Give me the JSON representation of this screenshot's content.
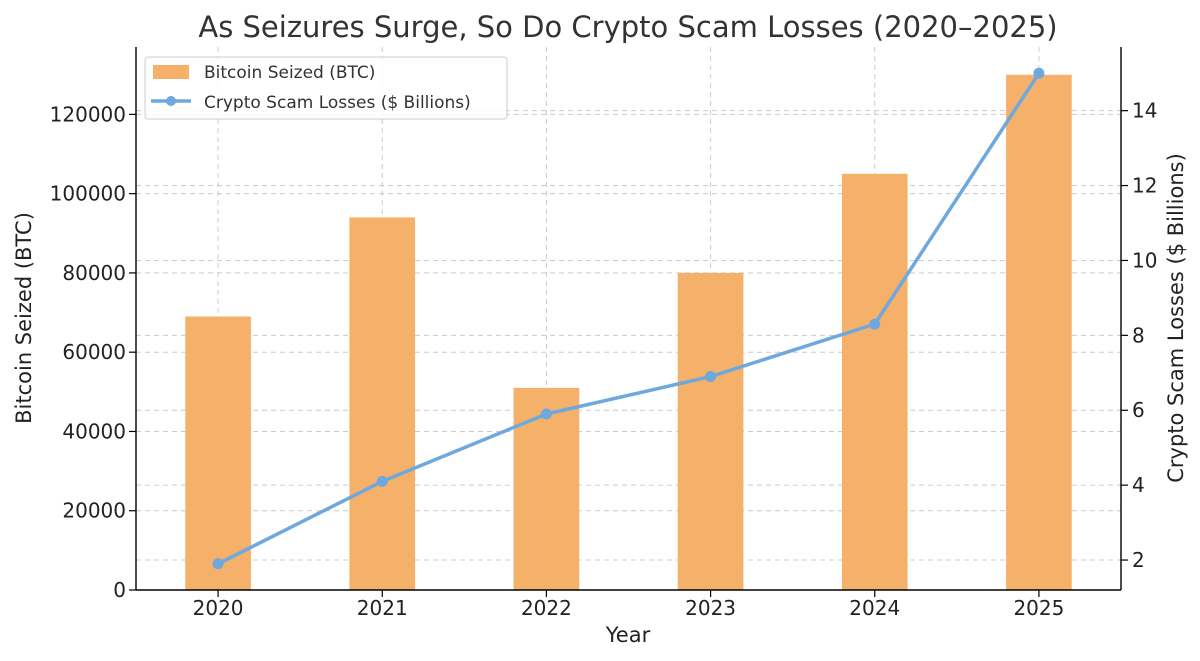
{
  "chart_data": {
    "type": "bar",
    "title": "As Seizures Surge, So Do Crypto Scam Losses (2020–2025)",
    "xlabel": "Year",
    "categories": [
      "2020",
      "2021",
      "2022",
      "2023",
      "2024",
      "2025"
    ],
    "series": [
      {
        "name": "Bitcoin Seized (BTC)",
        "type": "bar",
        "axis": "left",
        "color": "#f5b06a",
        "values": [
          69000,
          94000,
          51000,
          80000,
          105000,
          130000
        ]
      },
      {
        "name": "Crypto Scam Losses ($ Billions)",
        "type": "line",
        "axis": "right",
        "color": "#6fa8dc",
        "values": [
          1.9,
          4.1,
          5.9,
          6.9,
          8.3,
          15.0
        ]
      }
    ],
    "left_axis": {
      "label": "Bitcoin Seized (BTC)",
      "ylim": [
        0,
        137000
      ],
      "ticks": [
        "0",
        "20000",
        "40000",
        "60000",
        "80000",
        "100000",
        "120000"
      ]
    },
    "right_axis": {
      "label": "Crypto Scam Losses ($ Billions)",
      "ylim": [
        1.2,
        15.7
      ],
      "ticks": [
        "2",
        "4",
        "6",
        "8",
        "10",
        "12",
        "14"
      ]
    },
    "grid": true,
    "legend": "top-left"
  }
}
